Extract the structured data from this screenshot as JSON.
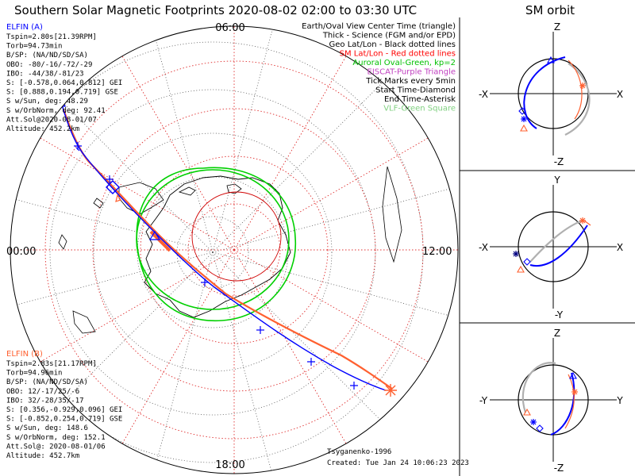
{
  "title": "Southern Solar Magnetic Footprints 2020-08-02 02:00 to 03:30 UTC",
  "orbit_title": "SM orbit",
  "legend": [
    {
      "text": "Earth/Oval View Center Time (triangle)",
      "color": "#000000"
    },
    {
      "text": "Thick - Science (FGM and/or EPD)",
      "color": "#000000"
    },
    {
      "text": "Geo Lat/Lon - Black dotted lines",
      "color": "#000000"
    },
    {
      "text": "SM Lat/Lon - Red dotted lines",
      "color": "#ff0000"
    },
    {
      "text": "Auroral Oval-Green, kp=2",
      "color": "#00c000"
    },
    {
      "text": "EISCAT-Purple Triangle",
      "color": "#c040c0"
    },
    {
      "text": "Tick Marks every 5min",
      "color": "#000000"
    },
    {
      "text": "Start Time-Diamond",
      "color": "#000000"
    },
    {
      "text": "End Time-Asterisk",
      "color": "#000000"
    },
    {
      "text": "VLF-Green Square",
      "color": "#80d080"
    }
  ],
  "probe_a": {
    "name": "ELFIN (A)",
    "color": "#0000ff",
    "lines": [
      "Tspin=2.80s[21.39RPM]",
      "Torb=94.73min",
      "B/SP: (NA/ND/SD/SA)",
      "OBO: -80/-16/-72/-29",
      "IBO: -44/38/-81/23",
      "S: [-0.578,0.064,0.812] GEI",
      "S: [0.888,0.194,0.719] GSE",
      "S w/Sun, deg: 48.29",
      "S w/OrbNorm, deg: 92.41",
      "Att.Sol@2020-08-01/07",
      "Altitude: 452.2km"
    ]
  },
  "probe_b": {
    "name": "ELFIN (B)",
    "color": "#ff6030",
    "lines": [
      "Tspin=2.83s[21.17RPM]",
      "Torb=94.96min",
      "B/SP: (NA/ND/SD/SA)",
      "OBO: 12/-17/25/-6",
      "IBO: 32/-28/35/-17",
      "S: [0.356,-0.929,0.096] GEI",
      "S: [-0.852,0.254,0.719] GSE",
      "S w/Sun, deg: 148.6",
      "S w/OrbNorm, deg: 152.1",
      "Att.Sol@: 2020-08-01/06",
      "Altitude: 452.7km"
    ]
  },
  "mlt_labels": {
    "top": "06:00",
    "bottom": "18:00",
    "left": "00:00",
    "right": "12:00"
  },
  "credit": "Tsyganenko-1996",
  "created": "Created: Tue Jan 24 10:06:23 2023",
  "panels": [
    {
      "h_left": "-X",
      "h_right": "X",
      "v_top": "Z",
      "v_bottom": "-Z"
    },
    {
      "h_left": "-X",
      "h_right": "X",
      "v_top": "Y",
      "v_bottom": "-Y"
    },
    {
      "h_left": "-Y",
      "h_right": "Y",
      "v_top": "Z",
      "v_bottom": "-Z"
    }
  ],
  "chart_data": {
    "type": "polar-map",
    "projection": "south-pole",
    "time_range": [
      "2020-08-02 02:00",
      "2020-08-02 03:30"
    ],
    "oval_kp": 2,
    "tick_interval_min": 5
  }
}
